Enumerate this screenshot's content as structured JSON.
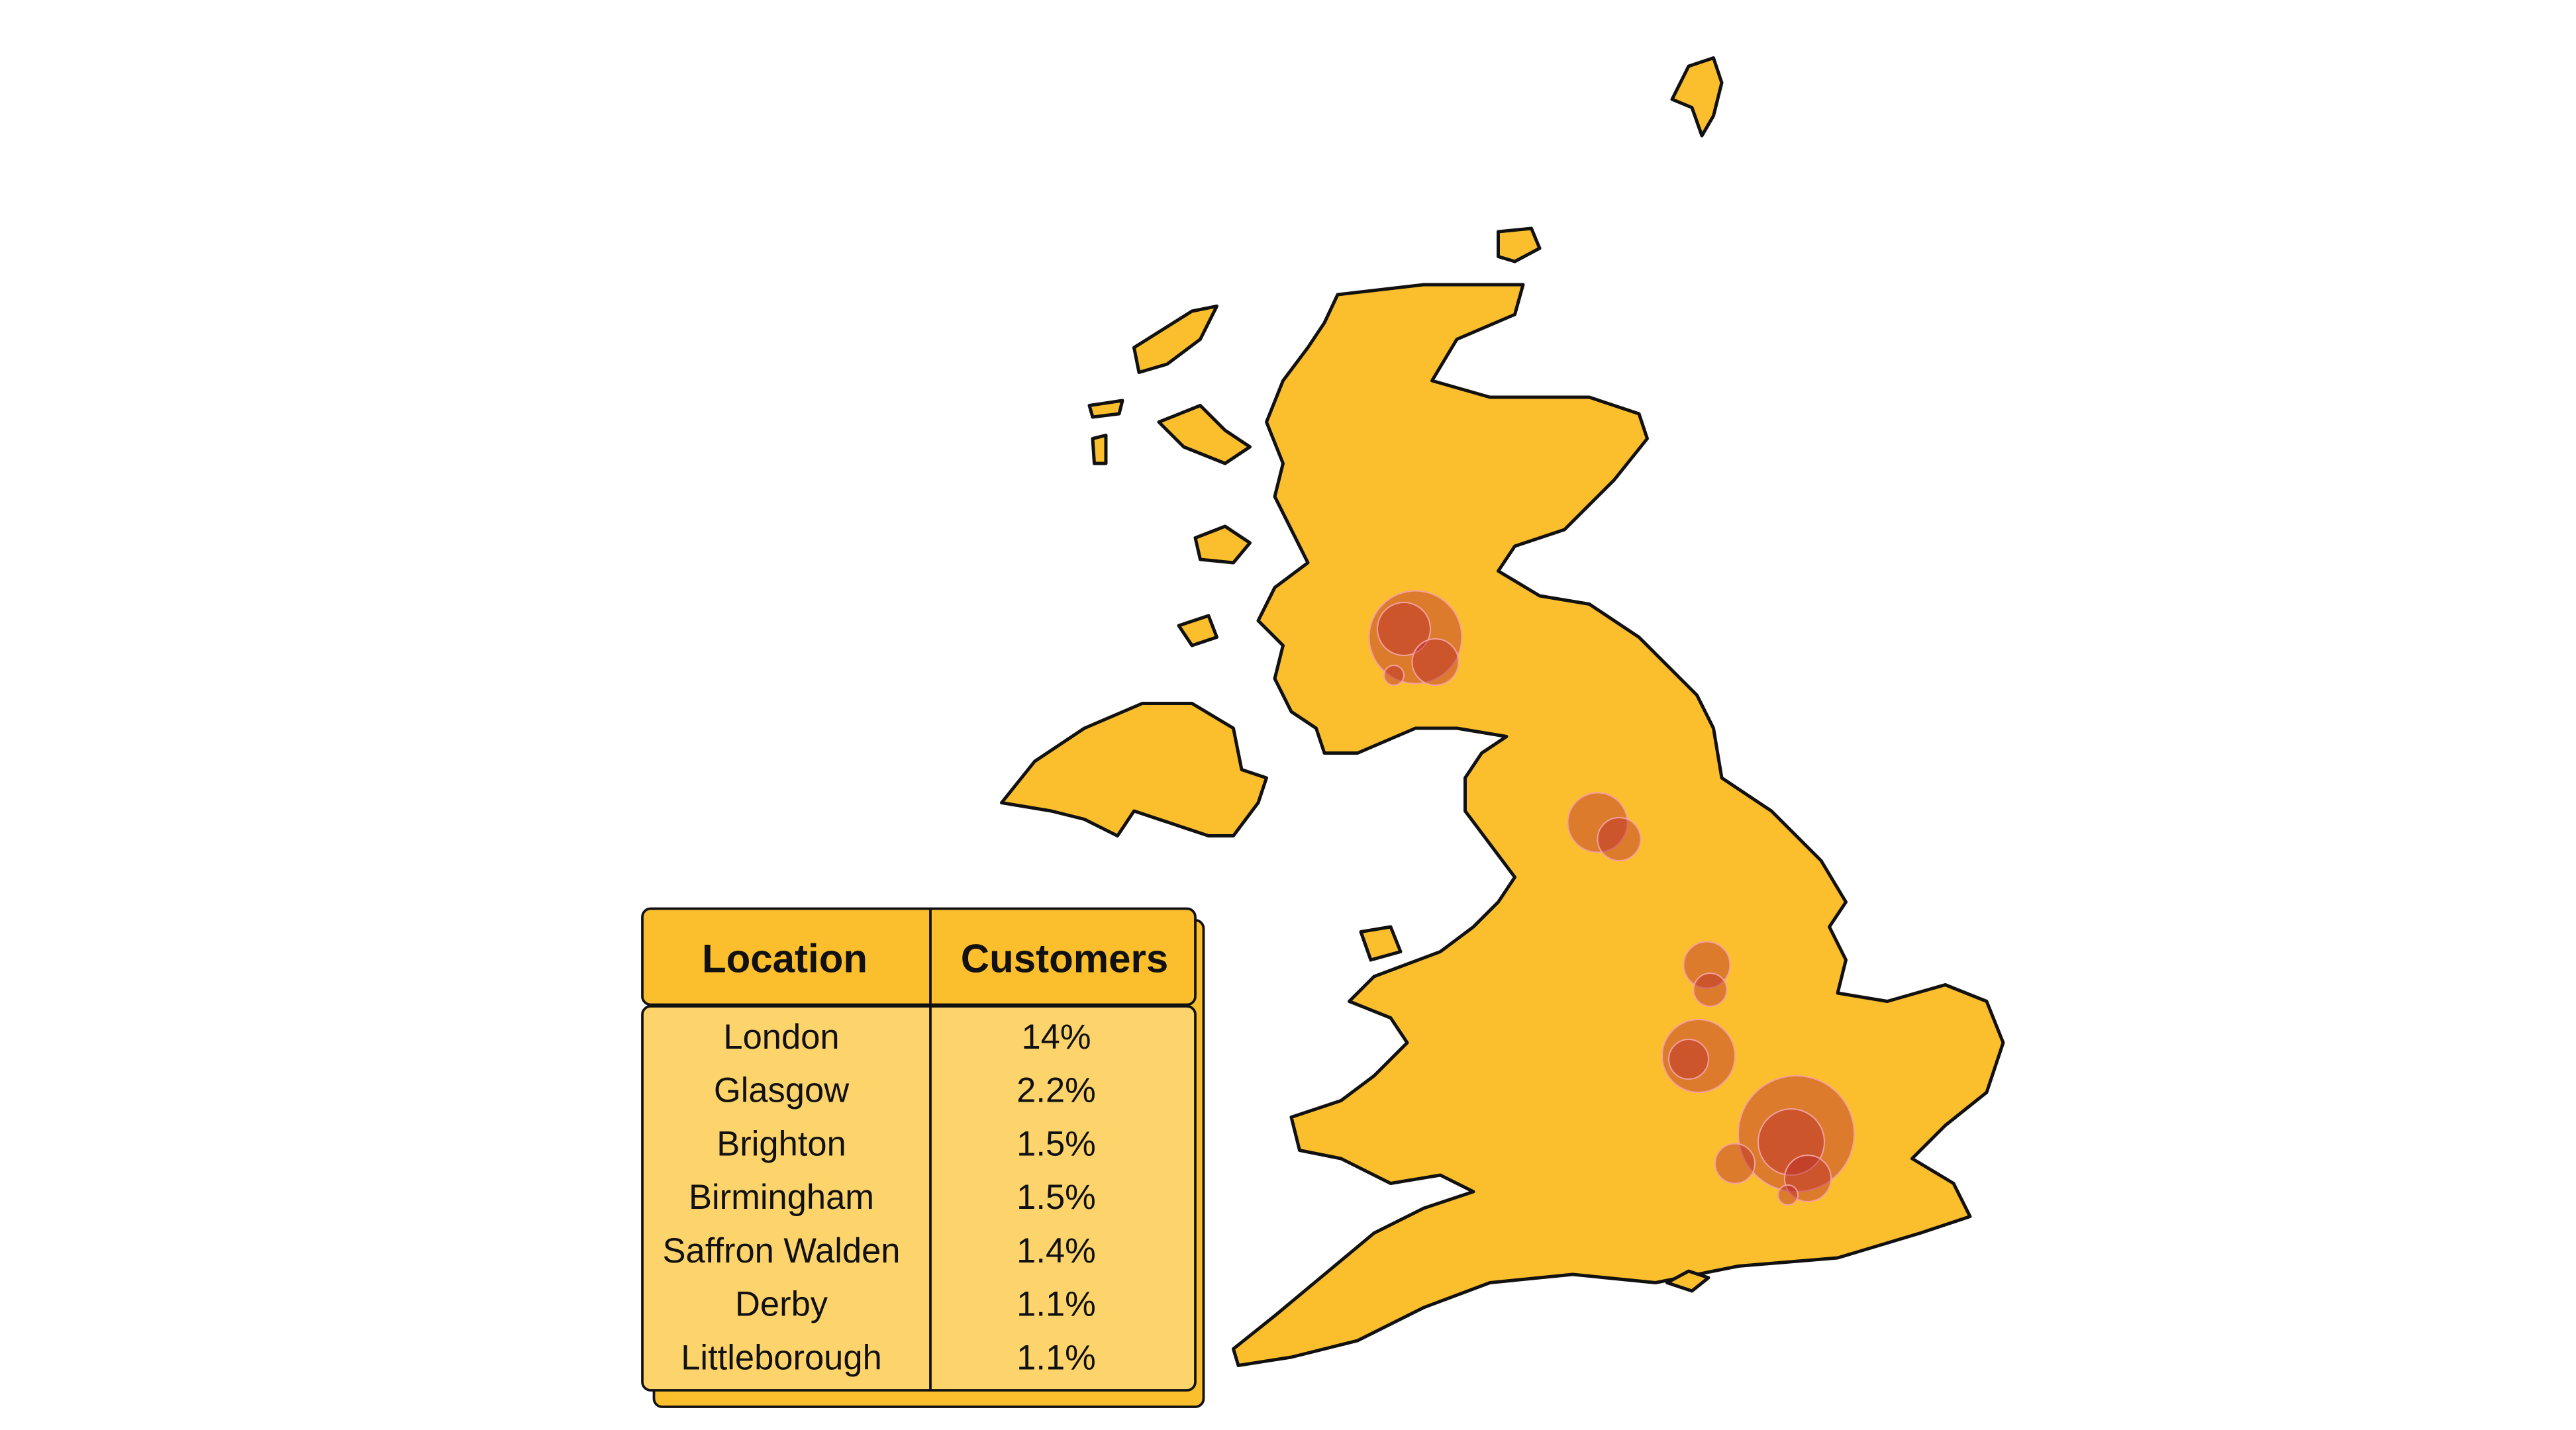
{
  "table": {
    "header": [
      "Location",
      "Customers"
    ],
    "rows": [
      [
        "London",
        "14%"
      ],
      [
        "Glasgow",
        "2.2%"
      ],
      [
        "Brighton",
        "1.5%"
      ],
      [
        "Birmingham",
        "1.5%"
      ],
      [
        "Saffron Walden",
        "1.4%"
      ],
      [
        "Derby",
        "1.1%"
      ],
      [
        "Littleborough",
        "1.1%"
      ]
    ]
  }
}
